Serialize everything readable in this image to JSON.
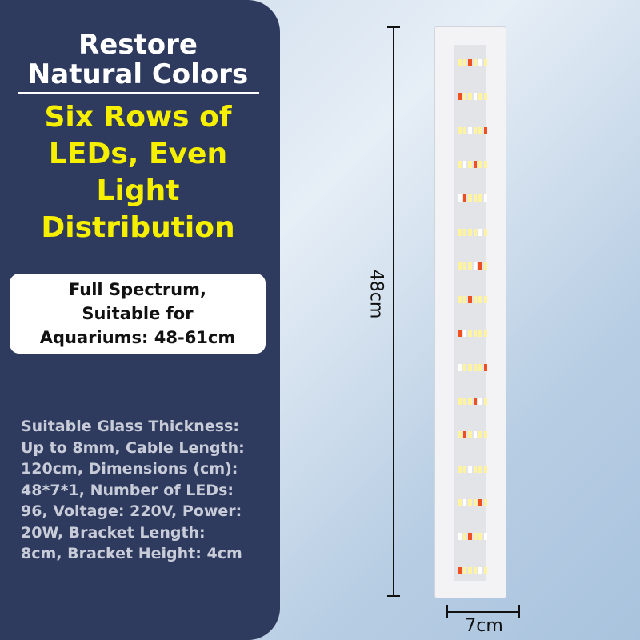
{
  "headline": {
    "line1": "Restore",
    "line2": "Natural Colors"
  },
  "feature": {
    "line1": "Six Rows of",
    "line2": "LEDs, Even",
    "line3": "Light",
    "line4": "Distribution"
  },
  "box": {
    "line1": "Full Spectrum,",
    "line2": "Suitable for",
    "line3": "Aquariums: 48-61cm"
  },
  "specs": [
    "Suitable Glass Thickness:",
    "Up to 8mm, Cable Length:",
    "120cm, Dimensions (cm):",
    "48*7*1, Number of LEDs:",
    "96, Voltage: 220V, Power:",
    "20W, Bracket Length:",
    "8cm, Bracket Height: 4cm"
  ],
  "dimensions": {
    "length": "48cm",
    "width": "7cm"
  },
  "colors": {
    "panel": "#2e3a5e",
    "highlight": "#f6f000",
    "led_warm": "#fff3a0",
    "led_red": "#f05020"
  }
}
